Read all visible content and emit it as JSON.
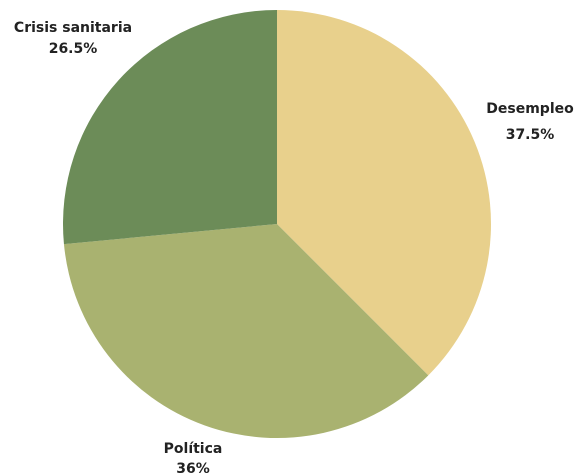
{
  "chart_data": {
    "type": "pie",
    "slices": [
      {
        "label": "Desempleo",
        "value": 37.5,
        "value_label": "37.5%",
        "color": "#e8d08c"
      },
      {
        "label": "Política",
        "value": 36,
        "value_label": "36%",
        "color": "#a9b270"
      },
      {
        "label": "Crisis sanitaria",
        "value": 26.5,
        "value_label": "26.5%",
        "color": "#6c8c58"
      }
    ]
  }
}
